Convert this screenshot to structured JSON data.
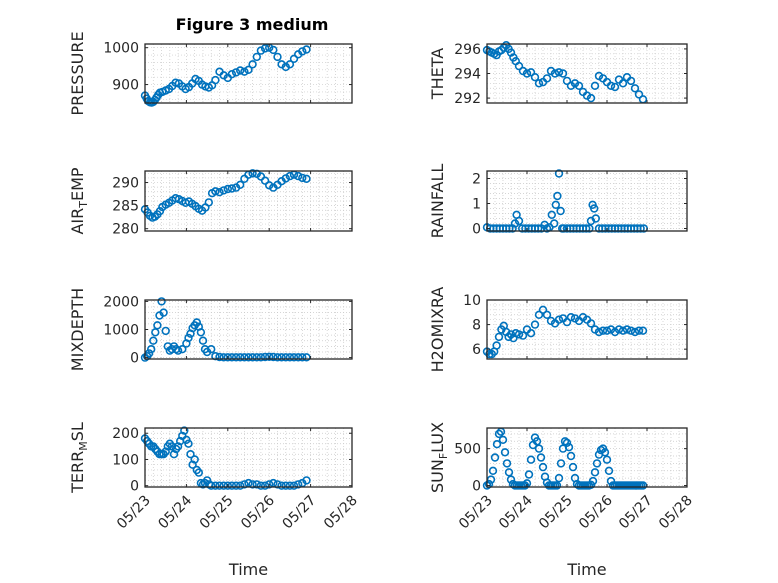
{
  "figure": {
    "title": "Figure 3 medium"
  },
  "chart_data": [
    {
      "type": "scatter",
      "ylabel": "PRESSURE",
      "xlabel": "",
      "ylim": [
        850,
        1010
      ],
      "yticks": [
        900,
        1000
      ],
      "xticks": [
        "05/23",
        "05/24",
        "05/25",
        "05/26",
        "05/27",
        "05/28"
      ],
      "xlim": [
        0,
        5
      ],
      "grid": true,
      "x": [
        0.0,
        0.04,
        0.08,
        0.12,
        0.16,
        0.2,
        0.24,
        0.28,
        0.32,
        0.36,
        0.42,
        0.5,
        0.58,
        0.66,
        0.74,
        0.82,
        0.9,
        0.98,
        1.06,
        1.14,
        1.22,
        1.3,
        1.38,
        1.46,
        1.54,
        1.62,
        1.7,
        1.8,
        1.9,
        2.0,
        2.1,
        2.2,
        2.3,
        2.4,
        2.5,
        2.6,
        2.7,
        2.8,
        2.9,
        3.0,
        3.1,
        3.2,
        3.3,
        3.4,
        3.5,
        3.6,
        3.7,
        3.8,
        3.9
      ],
      "values": [
        870,
        862,
        855,
        852,
        851,
        853,
        858,
        865,
        872,
        878,
        880,
        884,
        888,
        896,
        905,
        903,
        895,
        888,
        893,
        903,
        915,
        910,
        900,
        895,
        892,
        898,
        912,
        935,
        925,
        918,
        928,
        933,
        938,
        935,
        940,
        955,
        975,
        992,
        998,
        1000,
        994,
        975,
        955,
        948,
        955,
        970,
        982,
        990,
        995
      ]
    },
    {
      "type": "scatter",
      "ylabel": "THETA",
      "xlabel": "",
      "ylim": [
        291.6,
        296.4
      ],
      "yticks": [
        292,
        294,
        296
      ],
      "xticks": [
        "05/23",
        "05/24",
        "05/25",
        "05/26",
        "05/27",
        "05/28"
      ],
      "xlim": [
        0,
        5
      ],
      "grid": true,
      "x": [
        0.0,
        0.06,
        0.12,
        0.18,
        0.24,
        0.3,
        0.36,
        0.42,
        0.48,
        0.54,
        0.6,
        0.66,
        0.72,
        0.8,
        0.9,
        1.0,
        1.1,
        1.2,
        1.3,
        1.4,
        1.5,
        1.6,
        1.7,
        1.8,
        1.9,
        2.0,
        2.1,
        2.2,
        2.3,
        2.4,
        2.5,
        2.6,
        2.7,
        2.8,
        2.9,
        3.0,
        3.1,
        3.2,
        3.3,
        3.4,
        3.5,
        3.6,
        3.7,
        3.8,
        3.9
      ],
      "values": [
        295.9,
        295.8,
        295.7,
        295.6,
        295.5,
        295.8,
        295.9,
        296.1,
        296.3,
        296.0,
        295.7,
        295.3,
        295.0,
        294.6,
        294.2,
        294.0,
        294.1,
        293.7,
        293.2,
        293.3,
        293.6,
        294.2,
        294.0,
        294.1,
        294.0,
        293.4,
        293.0,
        293.2,
        293.0,
        292.5,
        292.2,
        292.0,
        293.0,
        293.8,
        293.6,
        293.3,
        293.0,
        292.9,
        293.5,
        293.2,
        293.7,
        293.4,
        292.8,
        292.3,
        291.9
      ]
    },
    {
      "type": "scatter",
      "ylabel": "AIR_TEMP",
      "xlabel": "",
      "ylim": [
        279.5,
        292.5
      ],
      "yticks": [
        280,
        285,
        290
      ],
      "xticks": [
        "05/23",
        "05/24",
        "05/25",
        "05/26",
        "05/27",
        "05/28"
      ],
      "xlim": [
        0,
        5
      ],
      "grid": true,
      "x": [
        0.0,
        0.06,
        0.12,
        0.18,
        0.24,
        0.3,
        0.36,
        0.42,
        0.5,
        0.58,
        0.66,
        0.74,
        0.82,
        0.9,
        0.98,
        1.06,
        1.14,
        1.22,
        1.3,
        1.38,
        1.46,
        1.54,
        1.62,
        1.7,
        1.8,
        1.9,
        2.0,
        2.1,
        2.2,
        2.3,
        2.4,
        2.5,
        2.6,
        2.7,
        2.8,
        2.9,
        3.0,
        3.1,
        3.2,
        3.3,
        3.4,
        3.5,
        3.6,
        3.7,
        3.8,
        3.9
      ],
      "values": [
        284.2,
        283.5,
        282.8,
        282.4,
        282.6,
        283.1,
        283.8,
        284.7,
        285.2,
        285.6,
        286.1,
        286.6,
        286.4,
        286.0,
        285.6,
        285.9,
        285.4,
        284.9,
        284.3,
        283.9,
        284.6,
        285.7,
        287.7,
        288.1,
        287.9,
        288.3,
        288.6,
        288.7,
        288.9,
        289.5,
        290.8,
        291.7,
        292.0,
        291.9,
        291.3,
        290.4,
        289.4,
        288.9,
        289.5,
        290.3,
        290.9,
        291.4,
        291.7,
        291.4,
        291.0,
        290.8
      ]
    },
    {
      "type": "scatter",
      "ylabel": "RAINFALL",
      "xlabel": "",
      "ylim": [
        -0.1,
        2.3
      ],
      "yticks": [
        0,
        1,
        2
      ],
      "xticks": [
        "05/23",
        "05/24",
        "05/25",
        "05/26",
        "05/27",
        "05/28"
      ],
      "xlim": [
        0,
        5
      ],
      "grid": true,
      "x": [
        0.0,
        0.08,
        0.16,
        0.24,
        0.32,
        0.4,
        0.48,
        0.56,
        0.64,
        0.7,
        0.74,
        0.8,
        0.88,
        0.96,
        1.04,
        1.12,
        1.2,
        1.28,
        1.36,
        1.44,
        1.5,
        1.56,
        1.62,
        1.68,
        1.72,
        1.76,
        1.8,
        1.84,
        1.88,
        1.92,
        2.0,
        2.08,
        2.16,
        2.24,
        2.32,
        2.4,
        2.48,
        2.56,
        2.6,
        2.64,
        2.68,
        2.72,
        2.8,
        2.88,
        2.96,
        3.04,
        3.12,
        3.2,
        3.28,
        3.36,
        3.44,
        3.52,
        3.6,
        3.68,
        3.76,
        3.84,
        3.92
      ],
      "values": [
        0.05,
        0,
        0,
        0,
        0,
        0,
        0,
        0,
        0,
        0.2,
        0.55,
        0.3,
        0,
        0,
        0,
        0,
        0,
        0,
        0,
        0.15,
        0,
        0.05,
        0.55,
        0.2,
        0.95,
        1.3,
        2.2,
        0.7,
        0,
        0,
        0,
        0,
        0,
        0,
        0,
        0,
        0,
        0,
        0.3,
        0.95,
        0.8,
        0.4,
        0,
        0,
        0,
        0,
        0,
        0,
        0,
        0,
        0,
        0,
        0,
        0,
        0,
        0,
        0
      ]
    },
    {
      "type": "scatter",
      "ylabel": "MIXDEPTH",
      "xlabel": "",
      "ylim": [
        -50,
        2050
      ],
      "yticks": [
        0,
        1000,
        2000
      ],
      "xticks": [
        "05/23",
        "05/24",
        "05/25",
        "05/26",
        "05/27",
        "05/28"
      ],
      "xlim": [
        0,
        5
      ],
      "grid": true,
      "x": [
        0.0,
        0.05,
        0.1,
        0.15,
        0.2,
        0.25,
        0.3,
        0.35,
        0.4,
        0.45,
        0.5,
        0.55,
        0.6,
        0.65,
        0.7,
        0.75,
        0.8,
        0.9,
        1.0,
        1.05,
        1.1,
        1.15,
        1.2,
        1.25,
        1.3,
        1.35,
        1.4,
        1.45,
        1.5,
        1.6,
        1.7,
        1.8,
        1.9,
        2.0,
        2.1,
        2.2,
        2.3,
        2.4,
        2.5,
        2.6,
        2.7,
        2.8,
        2.9,
        3.0,
        3.1,
        3.2,
        3.3,
        3.4,
        3.5,
        3.6,
        3.7,
        3.8,
        3.9
      ],
      "values": [
        0,
        50,
        150,
        300,
        600,
        900,
        1150,
        1500,
        2000,
        1600,
        950,
        400,
        250,
        300,
        400,
        300,
        250,
        300,
        500,
        700,
        850,
        1050,
        1150,
        1250,
        1100,
        900,
        600,
        300,
        200,
        300,
        50,
        20,
        10,
        10,
        10,
        10,
        10,
        10,
        10,
        10,
        10,
        10,
        20,
        30,
        20,
        10,
        10,
        10,
        10,
        10,
        10,
        10,
        10
      ]
    },
    {
      "type": "scatter",
      "ylabel": "H2OMIXRA",
      "xlabel": "",
      "ylim": [
        5.2,
        10.0
      ],
      "yticks": [
        6,
        8,
        10
      ],
      "xticks": [
        "05/23",
        "05/24",
        "05/25",
        "05/26",
        "05/27",
        "05/28"
      ],
      "xlim": [
        0,
        5
      ],
      "grid": true,
      "x": [
        0.0,
        0.06,
        0.12,
        0.18,
        0.24,
        0.3,
        0.36,
        0.42,
        0.48,
        0.54,
        0.6,
        0.66,
        0.72,
        0.8,
        0.9,
        1.0,
        1.1,
        1.2,
        1.3,
        1.4,
        1.5,
        1.6,
        1.7,
        1.8,
        1.9,
        2.0,
        2.1,
        2.2,
        2.3,
        2.4,
        2.5,
        2.6,
        2.7,
        2.8,
        2.9,
        3.0,
        3.1,
        3.2,
        3.3,
        3.4,
        3.5,
        3.6,
        3.7,
        3.8,
        3.9
      ],
      "values": [
        5.8,
        5.6,
        5.6,
        5.8,
        6.3,
        7.0,
        7.6,
        7.9,
        7.4,
        7.0,
        7.2,
        6.9,
        7.3,
        7.2,
        7.1,
        7.6,
        7.3,
        8.0,
        8.8,
        9.2,
        8.8,
        8.3,
        8.1,
        8.4,
        8.5,
        8.2,
        8.6,
        8.5,
        8.3,
        8.6,
        8.4,
        8.1,
        7.6,
        7.4,
        7.5,
        7.5,
        7.6,
        7.4,
        7.6,
        7.5,
        7.6,
        7.5,
        7.4,
        7.5,
        7.5
      ]
    },
    {
      "type": "scatter",
      "ylabel": "TERR_MSL",
      "xlabel": "Time",
      "ylim": [
        -5,
        220
      ],
      "yticks": [
        0,
        100,
        200
      ],
      "xticks": [
        "05/23",
        "05/24",
        "05/25",
        "05/26",
        "05/27",
        "05/28"
      ],
      "xlim": [
        0,
        5
      ],
      "grid": true,
      "x": [
        0.0,
        0.05,
        0.1,
        0.15,
        0.2,
        0.25,
        0.3,
        0.35,
        0.4,
        0.45,
        0.5,
        0.55,
        0.6,
        0.65,
        0.7,
        0.75,
        0.8,
        0.85,
        0.9,
        0.95,
        1.0,
        1.05,
        1.1,
        1.15,
        1.2,
        1.25,
        1.3,
        1.35,
        1.4,
        1.45,
        1.5,
        1.55,
        1.6,
        1.7,
        1.8,
        1.9,
        2.0,
        2.1,
        2.2,
        2.3,
        2.4,
        2.5,
        2.6,
        2.7,
        2.8,
        2.9,
        3.0,
        3.1,
        3.2,
        3.3,
        3.4,
        3.5,
        3.6,
        3.7,
        3.8,
        3.9
      ],
      "values": [
        180,
        170,
        160,
        150,
        150,
        140,
        130,
        120,
        120,
        120,
        130,
        150,
        160,
        150,
        120,
        140,
        150,
        170,
        190,
        210,
        175,
        160,
        120,
        80,
        100,
        60,
        50,
        10,
        5,
        10,
        20,
        5,
        0,
        0,
        0,
        0,
        0,
        0,
        0,
        0,
        5,
        10,
        5,
        5,
        0,
        0,
        5,
        10,
        5,
        0,
        0,
        0,
        0,
        5,
        10,
        20
      ]
    },
    {
      "type": "scatter",
      "ylabel": "SUN_FLUX",
      "xlabel": "Time",
      "ylim": [
        -20,
        780
      ],
      "yticks": [
        0,
        500
      ],
      "xticks": [
        "05/23",
        "05/24",
        "05/25",
        "05/26",
        "05/27",
        "05/28"
      ],
      "xlim": [
        0,
        5
      ],
      "grid": true,
      "x": [
        0.0,
        0.05,
        0.1,
        0.15,
        0.2,
        0.25,
        0.3,
        0.35,
        0.4,
        0.45,
        0.5,
        0.55,
        0.6,
        0.65,
        0.7,
        0.75,
        0.8,
        0.85,
        0.9,
        0.95,
        1.0,
        1.05,
        1.1,
        1.15,
        1.2,
        1.25,
        1.3,
        1.35,
        1.4,
        1.45,
        1.5,
        1.55,
        1.6,
        1.65,
        1.7,
        1.75,
        1.8,
        1.85,
        1.9,
        1.95,
        2.0,
        2.05,
        2.1,
        2.15,
        2.2,
        2.25,
        2.3,
        2.35,
        2.4,
        2.45,
        2.5,
        2.55,
        2.6,
        2.65,
        2.7,
        2.75,
        2.8,
        2.85,
        2.9,
        2.95,
        3.0,
        3.05,
        3.1,
        3.15,
        3.2,
        3.25,
        3.3,
        3.35,
        3.4,
        3.45,
        3.5,
        3.55,
        3.6,
        3.65,
        3.7,
        3.75,
        3.8,
        3.85,
        3.9
      ],
      "values": [
        0,
        20,
        80,
        200,
        380,
        560,
        700,
        730,
        620,
        450,
        300,
        180,
        80,
        20,
        0,
        0,
        0,
        0,
        0,
        0,
        30,
        150,
        350,
        550,
        650,
        600,
        500,
        380,
        250,
        120,
        40,
        0,
        0,
        0,
        0,
        0,
        100,
        300,
        500,
        600,
        580,
        520,
        400,
        250,
        100,
        20,
        0,
        0,
        0,
        0,
        0,
        0,
        10,
        60,
        180,
        300,
        420,
        480,
        500,
        450,
        350,
        200,
        60,
        0,
        0,
        0,
        0,
        0,
        0,
        0,
        0,
        0,
        0,
        0,
        0,
        0,
        0,
        0,
        0
      ]
    }
  ]
}
